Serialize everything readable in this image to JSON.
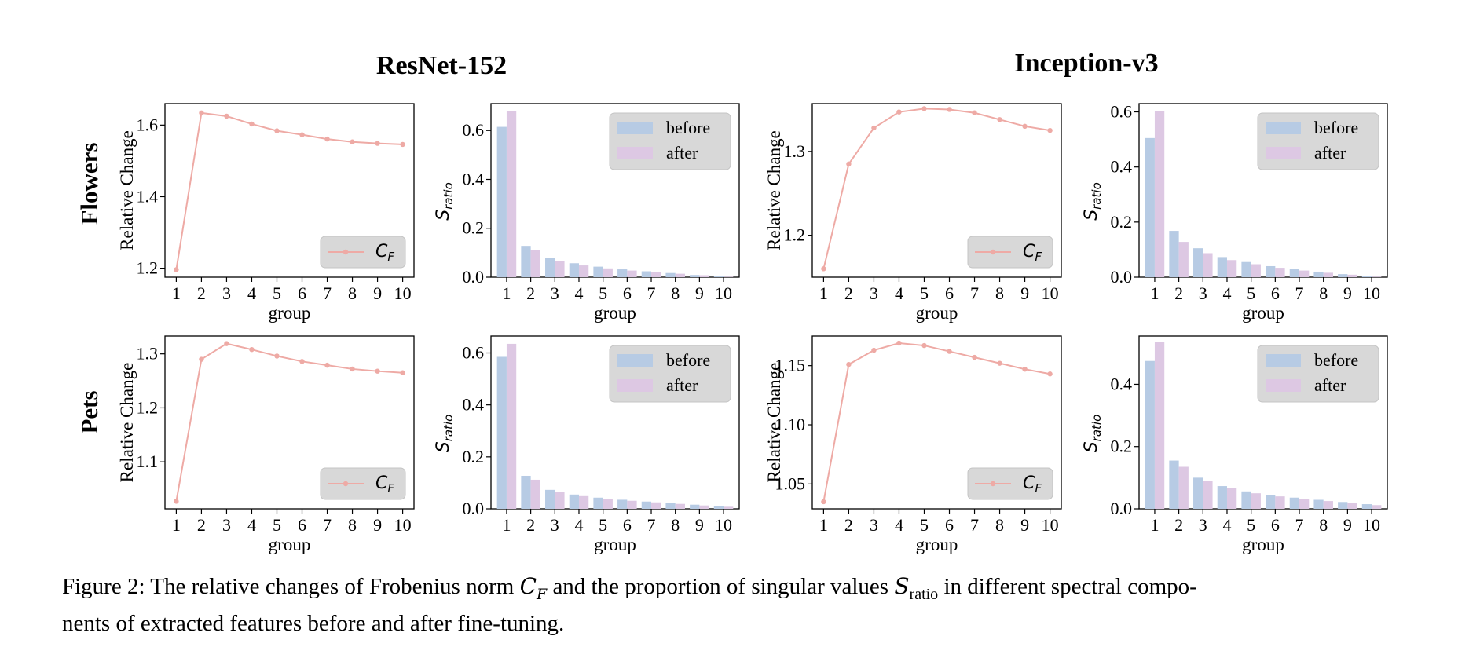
{
  "column_titles": [
    "ResNet-152",
    "Inception-v3"
  ],
  "row_labels": [
    "Flowers",
    "Pets"
  ],
  "caption": {
    "prefix": "Figure 2: The relative changes of Frobenius norm ",
    "cf_symbol": "C",
    "cf_sub": "F",
    "middle": " and the proportion of singular values ",
    "s_symbol": "S",
    "s_sub": "ratio",
    "suffix_line1": " in different spectral compo-",
    "line2": "nents of extracted features before and after fine-tuning."
  },
  "colors": {
    "line": "#eeaaa5",
    "before": "#b7cbe4",
    "after": "#ddc8e3",
    "legend_bg": "#d8d8d8"
  },
  "chart_data": [
    {
      "id": "resnet-flowers-cf",
      "type": "line",
      "dataset": "Flowers",
      "model": "ResNet-152",
      "x": [
        1,
        2,
        3,
        4,
        5,
        6,
        7,
        8,
        9,
        10
      ],
      "y": [
        1.196,
        1.634,
        1.625,
        1.603,
        1.584,
        1.573,
        1.561,
        1.553,
        1.549,
        1.546
      ],
      "xlabel": "group",
      "ylabel": "Relative Change",
      "ylim": [
        1.175,
        1.66
      ],
      "yticks": [
        1.2,
        1.4,
        1.6
      ],
      "yticklabels": [
        "1.2",
        "1.4",
        "1.6"
      ],
      "legend": {
        "entries": [
          "C_F"
        ],
        "position": "lower-right"
      }
    },
    {
      "id": "resnet-flowers-s",
      "type": "bar",
      "dataset": "Flowers",
      "model": "ResNet-152",
      "categories": [
        1,
        2,
        3,
        4,
        5,
        6,
        7,
        8,
        9,
        10
      ],
      "series": [
        {
          "name": "before",
          "values": [
            0.615,
            0.128,
            0.078,
            0.057,
            0.043,
            0.032,
            0.024,
            0.017,
            0.009,
            0.003
          ]
        },
        {
          "name": "after",
          "values": [
            0.678,
            0.112,
            0.065,
            0.048,
            0.036,
            0.027,
            0.02,
            0.014,
            0.008,
            0.002
          ]
        }
      ],
      "xlabel": "group",
      "ylabel": "S_ratio",
      "ylim": [
        0,
        0.71
      ],
      "yticks": [
        0.0,
        0.2,
        0.4,
        0.6
      ],
      "yticklabels": [
        "0.0",
        "0.2",
        "0.4",
        "0.6"
      ],
      "legend": {
        "entries": [
          "before",
          "after"
        ],
        "position": "top-right"
      }
    },
    {
      "id": "inception-flowers-cf",
      "type": "line",
      "dataset": "Flowers",
      "model": "Inception-v3",
      "x": [
        1,
        2,
        3,
        4,
        5,
        6,
        7,
        8,
        9,
        10
      ],
      "y": [
        1.16,
        1.285,
        1.328,
        1.347,
        1.351,
        1.35,
        1.346,
        1.338,
        1.33,
        1.325
      ],
      "xlabel": "group",
      "ylabel": "Relative Change",
      "ylim": [
        1.15,
        1.357
      ],
      "yticks": [
        1.2,
        1.3
      ],
      "yticklabels": [
        "1.2",
        "1.3"
      ],
      "legend": {
        "entries": [
          "C_F"
        ],
        "position": "lower-right"
      }
    },
    {
      "id": "inception-flowers-s",
      "type": "bar",
      "dataset": "Flowers",
      "model": "Inception-v3",
      "categories": [
        1,
        2,
        3,
        4,
        5,
        6,
        7,
        8,
        9,
        10
      ],
      "series": [
        {
          "name": "before",
          "values": [
            0.505,
            0.168,
            0.105,
            0.073,
            0.055,
            0.04,
            0.029,
            0.02,
            0.011,
            0.003
          ]
        },
        {
          "name": "after",
          "values": [
            0.602,
            0.128,
            0.087,
            0.062,
            0.047,
            0.034,
            0.024,
            0.016,
            0.009,
            0.002
          ]
        }
      ],
      "xlabel": "group",
      "ylabel": "S_ratio",
      "ylim": [
        0,
        0.63
      ],
      "yticks": [
        0.0,
        0.2,
        0.4,
        0.6
      ],
      "yticklabels": [
        "0.0",
        "0.2",
        "0.4",
        "0.6"
      ],
      "legend": {
        "entries": [
          "before",
          "after"
        ],
        "position": "top-right"
      }
    },
    {
      "id": "resnet-pets-cf",
      "type": "line",
      "dataset": "Pets",
      "model": "ResNet-152",
      "x": [
        1,
        2,
        3,
        4,
        5,
        6,
        7,
        8,
        9,
        10
      ],
      "y": [
        1.027,
        1.29,
        1.319,
        1.308,
        1.296,
        1.286,
        1.279,
        1.272,
        1.268,
        1.265
      ],
      "xlabel": "group",
      "ylabel": "Relative Change",
      "ylim": [
        1.013,
        1.333
      ],
      "yticks": [
        1.1,
        1.2,
        1.3
      ],
      "yticklabels": [
        "1.1",
        "1.2",
        "1.3"
      ],
      "legend": {
        "entries": [
          "C_F"
        ],
        "position": "lower-right"
      }
    },
    {
      "id": "resnet-pets-s",
      "type": "bar",
      "dataset": "Pets",
      "model": "ResNet-152",
      "categories": [
        1,
        2,
        3,
        4,
        5,
        6,
        7,
        8,
        9,
        10
      ],
      "series": [
        {
          "name": "before",
          "values": [
            0.585,
            0.127,
            0.073,
            0.055,
            0.043,
            0.035,
            0.028,
            0.022,
            0.016,
            0.01
          ]
        },
        {
          "name": "after",
          "values": [
            0.635,
            0.112,
            0.066,
            0.049,
            0.038,
            0.031,
            0.025,
            0.019,
            0.013,
            0.008
          ]
        }
      ],
      "xlabel": "group",
      "ylabel": "S_ratio",
      "ylim": [
        0,
        0.665
      ],
      "yticks": [
        0.0,
        0.2,
        0.4,
        0.6
      ],
      "yticklabels": [
        "0.0",
        "0.2",
        "0.4",
        "0.6"
      ],
      "legend": {
        "entries": [
          "before",
          "after"
        ],
        "position": "top-right"
      }
    },
    {
      "id": "inception-pets-cf",
      "type": "line",
      "dataset": "Pets",
      "model": "Inception-v3",
      "x": [
        1,
        2,
        3,
        4,
        5,
        6,
        7,
        8,
        9,
        10
      ],
      "y": [
        1.035,
        1.151,
        1.163,
        1.169,
        1.167,
        1.162,
        1.157,
        1.152,
        1.147,
        1.143
      ],
      "xlabel": "group",
      "ylabel": "Relative Change",
      "ylim": [
        1.029,
        1.175
      ],
      "yticks": [
        1.05,
        1.1,
        1.15
      ],
      "yticklabels": [
        "1.05",
        "1.10",
        "1.15"
      ],
      "legend": {
        "entries": [
          "C_F"
        ],
        "position": "lower-right"
      }
    },
    {
      "id": "inception-pets-s",
      "type": "bar",
      "dataset": "Pets",
      "model": "Inception-v3",
      "categories": [
        1,
        2,
        3,
        4,
        5,
        6,
        7,
        8,
        9,
        10
      ],
      "series": [
        {
          "name": "before",
          "values": [
            0.475,
            0.155,
            0.1,
            0.073,
            0.056,
            0.045,
            0.036,
            0.029,
            0.022,
            0.015
          ]
        },
        {
          "name": "after",
          "values": [
            0.535,
            0.135,
            0.09,
            0.066,
            0.05,
            0.04,
            0.032,
            0.025,
            0.019,
            0.012
          ]
        }
      ],
      "xlabel": "group",
      "ylabel": "S_ratio",
      "ylim": [
        0,
        0.555
      ],
      "yticks": [
        0.0,
        0.2,
        0.4
      ],
      "yticklabels": [
        "0.0",
        "0.2",
        "0.4"
      ],
      "legend": {
        "entries": [
          "before",
          "after"
        ],
        "position": "top-right"
      }
    }
  ]
}
